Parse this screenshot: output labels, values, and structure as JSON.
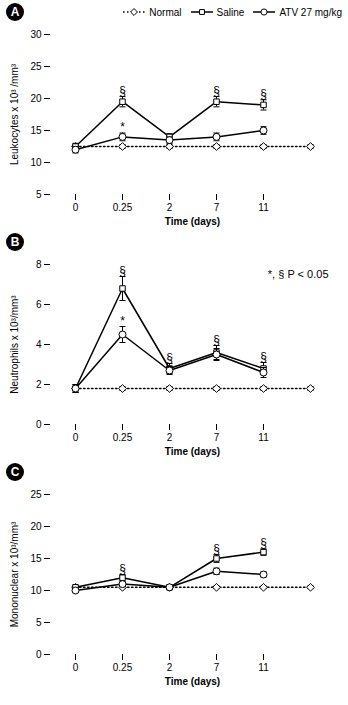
{
  "chart_data": [
    {
      "type": "line",
      "title": "A",
      "xlabel": "Time (days)",
      "ylabel": "Leukocytes x 10³ /mm³",
      "categories": [
        "0",
        "0.25",
        "2",
        "7",
        "11",
        null
      ],
      "ylim": [
        5,
        30
      ],
      "yticks": [
        5,
        10,
        15,
        20,
        25,
        30
      ],
      "legend": "upper right",
      "series": [
        {
          "name": "Normal",
          "color": "black",
          "marker": "diamond",
          "line_style": "dotted",
          "values": [
            12.5,
            12.5,
            12.5,
            12.5,
            12.5,
            12.5
          ],
          "yerr": [
            0.3,
            0.3,
            0.3,
            0.3,
            0.3,
            0.3
          ]
        },
        {
          "name": "Saline",
          "color": "black",
          "marker": "square",
          "line_style": "solid",
          "values": [
            12.5,
            19.5,
            14.0,
            19.5,
            19.0,
            null
          ],
          "yerr": [
            0.5,
            0.8,
            0.5,
            0.8,
            0.8,
            null
          ],
          "significance": [
            null,
            "§",
            null,
            "§",
            "§",
            null
          ]
        },
        {
          "name": "ATV 27 mg/kg",
          "color": "black",
          "marker": "circle",
          "line_style": "solid",
          "values": [
            12.0,
            14.0,
            13.5,
            14.0,
            15.0,
            null
          ],
          "yerr": [
            0.5,
            0.6,
            0.5,
            0.6,
            0.6,
            null
          ],
          "significance": [
            null,
            "*",
            null,
            null,
            null,
            null
          ]
        }
      ]
    },
    {
      "type": "line",
      "title": "B",
      "xlabel": "Time (days)",
      "ylabel": "Neutrophils x 10³/mm³",
      "annotation": "*, § P < 0.05",
      "categories": [
        "0",
        "0.25",
        "2",
        "7",
        "11",
        null
      ],
      "ylim": [
        0,
        8
      ],
      "yticks": [
        0,
        2,
        4,
        6,
        8
      ],
      "series": [
        {
          "name": "Normal",
          "color": "black",
          "marker": "diamond",
          "line_style": "dotted",
          "values": [
            1.8,
            1.8,
            1.8,
            1.8,
            1.8,
            1.8
          ],
          "yerr": [
            0.1,
            0.1,
            0.1,
            0.1,
            0.1,
            0.1
          ]
        },
        {
          "name": "Saline",
          "color": "black",
          "marker": "square",
          "line_style": "solid",
          "values": [
            1.8,
            6.8,
            2.8,
            3.6,
            2.8,
            null
          ],
          "yerr": [
            0.2,
            0.6,
            0.25,
            0.35,
            0.3,
            null
          ],
          "significance": [
            null,
            "§",
            "§",
            "§",
            "§",
            null
          ]
        },
        {
          "name": "ATV 27 mg/kg",
          "color": "black",
          "marker": "circle",
          "line_style": "solid",
          "values": [
            1.8,
            4.5,
            2.7,
            3.5,
            2.6,
            null
          ],
          "yerr": [
            0.2,
            0.4,
            0.2,
            0.3,
            0.25,
            null
          ],
          "significance": [
            null,
            "*",
            null,
            null,
            null,
            null
          ]
        }
      ]
    },
    {
      "type": "line",
      "title": "C",
      "xlabel": "Time (days)",
      "ylabel": "Mononuclear x 10³/mm³",
      "categories": [
        "0",
        "0.25",
        "2",
        "7",
        "11",
        null
      ],
      "ylim": [
        0,
        25
      ],
      "yticks": [
        0,
        5,
        10,
        15,
        20,
        25
      ],
      "series": [
        {
          "name": "Normal",
          "color": "black",
          "marker": "diamond",
          "line_style": "dotted",
          "values": [
            10.5,
            10.5,
            10.5,
            10.5,
            10.5,
            10.5
          ],
          "yerr": [
            0.2,
            0.2,
            0.2,
            0.2,
            0.2,
            0.2
          ]
        },
        {
          "name": "Saline",
          "color": "black",
          "marker": "square",
          "line_style": "solid",
          "values": [
            10.5,
            12.0,
            10.5,
            15.0,
            16.0,
            null
          ],
          "yerr": [
            0.3,
            0.5,
            0.3,
            0.6,
            0.5,
            null
          ],
          "significance": [
            null,
            "§",
            null,
            "§",
            "§",
            null
          ]
        },
        {
          "name": "ATV 27 mg/kg",
          "color": "black",
          "marker": "circle",
          "line_style": "solid",
          "values": [
            10.0,
            11.0,
            10.5,
            13.0,
            12.5,
            null
          ],
          "yerr": [
            0.3,
            0.4,
            0.3,
            0.5,
            0.4,
            null
          ]
        }
      ]
    }
  ]
}
